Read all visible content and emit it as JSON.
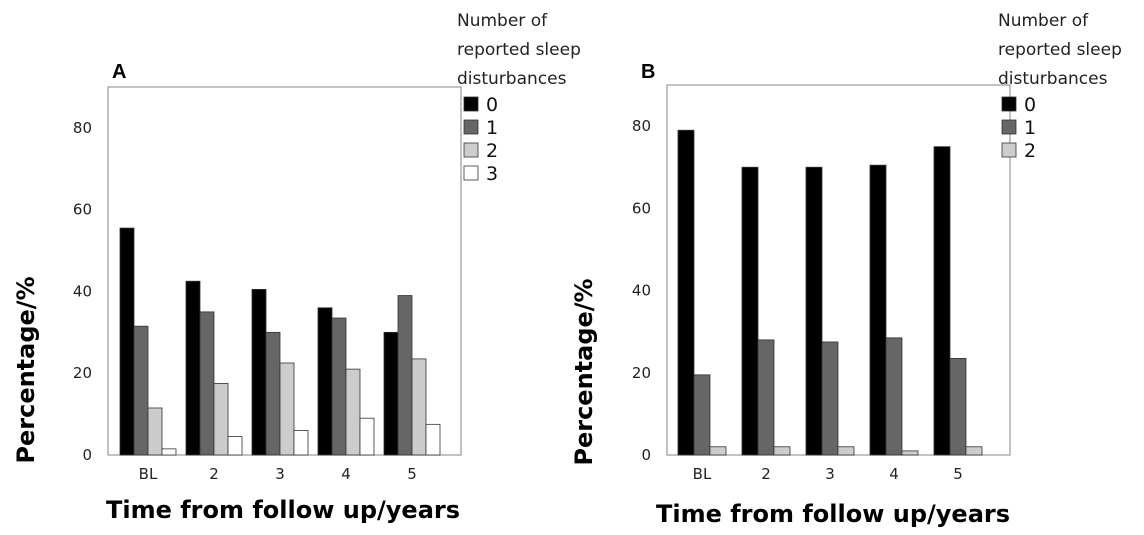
{
  "chart_data": [
    {
      "panel": "A",
      "type": "bar",
      "xlabel": "Time from follow up/years",
      "ylabel": "Percentage/%",
      "categories": [
        "BL",
        "2",
        "3",
        "4",
        "5"
      ],
      "yticks": [
        "0",
        "20",
        "40",
        "60",
        "80"
      ],
      "ylim": [
        0,
        90
      ],
      "legend_title": "Number of reported sleep disturbances",
      "legend_position": "top-right, outside plot",
      "grid": false,
      "series": [
        {
          "name": "0",
          "color": "#000000",
          "values": [
            55.5,
            42.5,
            40.5,
            36,
            30
          ]
        },
        {
          "name": "1",
          "color": "#666666",
          "values": [
            31.5,
            35,
            30,
            33.5,
            39
          ]
        },
        {
          "name": "2",
          "color": "#cccccc",
          "values": [
            11.5,
            17.5,
            22.5,
            21,
            23.5
          ]
        },
        {
          "name": "3",
          "color": "#ffffff",
          "values": [
            1.5,
            4.5,
            6,
            9,
            7.5
          ]
        }
      ]
    },
    {
      "panel": "B",
      "type": "bar",
      "xlabel": "Time from follow up/years",
      "ylabel": "Percentage/%",
      "categories": [
        "BL",
        "2",
        "3",
        "4",
        "5"
      ],
      "yticks": [
        "0",
        "20",
        "40",
        "60",
        "80"
      ],
      "ylim": [
        0,
        90
      ],
      "legend_title": "Number of reported sleep disturbances",
      "legend_position": "top-right, outside plot",
      "grid": false,
      "series": [
        {
          "name": "0",
          "color": "#000000",
          "values": [
            79,
            70,
            70,
            70.5,
            75
          ]
        },
        {
          "name": "1",
          "color": "#666666",
          "values": [
            19.5,
            28,
            27.5,
            28.5,
            23.5
          ]
        },
        {
          "name": "2",
          "color": "#cccccc",
          "values": [
            2,
            2,
            2,
            1,
            2
          ]
        }
      ]
    }
  ]
}
